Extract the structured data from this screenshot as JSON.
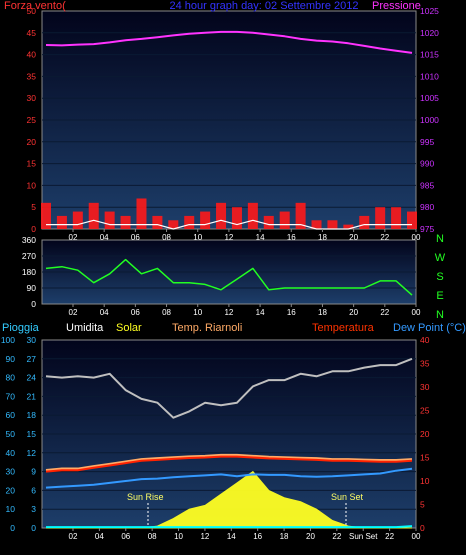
{
  "colors": {
    "background": "#000000",
    "plot_bg_top": "#02041b",
    "plot_bg_bottom": "#1d3e6a",
    "frame": "#8a8a8a",
    "grid": "#0a1a33",
    "wind_speed": "#ff1a1a",
    "wind_gust": "#ffffff",
    "pressure": "#ff33ff",
    "direction": "#22ff22",
    "rain": "#00ffff",
    "humidity": "#bfbfbf",
    "solar": "#ffff22",
    "apparent": "#ffaa66",
    "temperature": "#ff2200",
    "dewpoint": "#3399ff",
    "title_blue": "#3333ff",
    "left_axis": "#ff3333",
    "right_axis_pressure": "#cc33ff",
    "dir_axis": "#22ff22",
    "rain_axis": "#33bbff",
    "hum_axis": "#ffffff",
    "temp_axis": "#ff3333"
  },
  "header": {
    "wind_title": "Forza vento(",
    "center_title": "24 hour graph day: 02 Settembre 2012",
    "pressure_title": "Pressione"
  },
  "legend": {
    "rain": "Pioggia",
    "humidity": "Umidita",
    "solar": "Solar",
    "apparent": "Temp. Riarnoli",
    "temperature": "Temperatura",
    "dewpoint": "Dew Point (°C)"
  },
  "markers": {
    "sunrise": "Sun Rise",
    "sunset": "Sun Set",
    "sunset_tick": "Sun Set"
  },
  "chart_data": [
    {
      "type": "line",
      "title": "24 hour graph day: 02 Settembre 2012",
      "x": [
        1,
        2,
        3,
        4,
        5,
        6,
        7,
        8,
        9,
        10,
        11,
        12,
        13,
        14,
        15,
        16,
        17,
        18,
        19,
        20,
        21,
        22,
        23,
        24
      ],
      "x_tick_labels": [
        "02",
        "04",
        "06",
        "08",
        "10",
        "12",
        "14",
        "16",
        "18",
        "20",
        "22",
        "00"
      ],
      "y_left_label": "Forza vento(",
      "y_left_ticks": [
        0,
        5,
        10,
        15,
        20,
        25,
        30,
        35,
        40,
        45,
        50
      ],
      "y_left_range": [
        0,
        50
      ],
      "y_right_label": "Pressione",
      "y_right_ticks": [
        975,
        980,
        985,
        990,
        995,
        1000,
        1005,
        1010,
        1015,
        1020,
        1025
      ],
      "y_right_range": [
        975,
        1025
      ],
      "series": [
        {
          "axis": "right",
          "values": [
            1017.2,
            1017.1,
            1017.3,
            1017.4,
            1017.8,
            1018.3,
            1018.6,
            1019.0,
            1019.4,
            1019.8,
            1020.0,
            1020.2,
            1020.2,
            1020.0,
            1019.6,
            1019.2,
            1018.6,
            1018.2,
            1018.0,
            1017.6,
            1017.0,
            1016.4,
            1015.9,
            1015.4
          ]
        },
        {
          "axis": "left",
          "values": [
            6,
            3,
            4,
            6,
            4,
            3,
            7,
            3,
            2,
            3,
            4,
            6,
            5,
            6,
            3,
            4,
            6,
            2,
            2,
            1,
            3,
            5,
            5,
            4
          ]
        },
        {
          "axis": "left",
          "values": [
            1,
            1,
            1,
            2,
            1,
            1,
            1,
            1,
            0,
            1,
            1,
            2,
            1,
            2,
            1,
            1,
            1,
            0,
            0,
            0,
            1,
            1,
            1,
            1
          ]
        }
      ]
    },
    {
      "type": "line",
      "x": [
        1,
        2,
        3,
        4,
        5,
        6,
        7,
        8,
        9,
        10,
        11,
        12,
        13,
        14,
        15,
        16,
        17,
        18,
        19,
        20,
        21,
        22,
        23,
        24
      ],
      "x_tick_labels": [
        "02",
        "04",
        "06",
        "08",
        "10",
        "12",
        "14",
        "16",
        "18",
        "20",
        "22",
        "00"
      ],
      "y_ticks": [
        0,
        90,
        180,
        270,
        360
      ],
      "y_range": [
        0,
        360
      ],
      "right_labels": [
        "N",
        "W",
        "S",
        "E",
        "N"
      ],
      "series": [
        {
          "values": [
            200,
            210,
            190,
            120,
            170,
            250,
            170,
            200,
            120,
            120,
            110,
            80,
            140,
            200,
            80,
            90,
            90,
            90,
            90,
            90,
            90,
            130,
            130,
            50
          ]
        }
      ]
    },
    {
      "type": "line",
      "x": [
        1,
        2,
        3,
        4,
        5,
        6,
        7,
        8,
        9,
        10,
        11,
        12,
        13,
        14,
        15,
        16,
        17,
        18,
        19,
        20,
        21,
        22,
        23,
        24
      ],
      "x_tick_labels": [
        "02",
        "04",
        "06",
        "08",
        "10",
        "12",
        "14",
        "16",
        "18",
        "20",
        "22",
        "Sun Set",
        "22",
        "00"
      ],
      "legend": [
        "Pioggia",
        "Umidita",
        "Solar",
        "Temp. Riarnoli",
        "Temperatura",
        "Dew Point (°C)"
      ],
      "y_rain_ticks": [
        0,
        10,
        20,
        30,
        40,
        50,
        60,
        70,
        80,
        90,
        100
      ],
      "y_rain_range": [
        0,
        100
      ],
      "y_hum_ticks": [
        0,
        3,
        6,
        9,
        12,
        15,
        18,
        21,
        24,
        27,
        30
      ],
      "y_hum_range": [
        0,
        30
      ],
      "y_temp_ticks": [
        0,
        5,
        10,
        15,
        20,
        25,
        30,
        35,
        40
      ],
      "y_temp_range": [
        0,
        40
      ],
      "series": [
        {
          "axis": "hum",
          "values": [
            24.2,
            24.0,
            24.2,
            24.0,
            24.6,
            22.0,
            20.6,
            20.0,
            17.6,
            18.6,
            20.0,
            19.6,
            20.0,
            22.6,
            23.6,
            23.6,
            24.6,
            24.2,
            25.0,
            25.0,
            25.6,
            26.0,
            26.0,
            27.0
          ]
        },
        {
          "axis": "temp",
          "values": [
            12.3,
            12.6,
            12.6,
            13.1,
            13.6,
            14.1,
            14.6,
            14.8,
            15.0,
            15.2,
            15.3,
            15.5,
            15.5,
            15.3,
            15.1,
            15.0,
            14.9,
            14.8,
            14.6,
            14.6,
            14.5,
            14.4,
            14.4,
            14.6
          ]
        },
        {
          "axis": "temp",
          "values": [
            12.0,
            12.3,
            12.3,
            12.8,
            13.3,
            13.8,
            14.3,
            14.5,
            14.7,
            14.9,
            15.0,
            15.2,
            15.2,
            15.0,
            14.8,
            14.7,
            14.6,
            14.5,
            14.3,
            14.3,
            14.2,
            14.1,
            14.1,
            14.3
          ]
        },
        {
          "axis": "temp",
          "values": [
            8.6,
            8.8,
            9.0,
            9.2,
            9.6,
            10.0,
            10.4,
            10.5,
            10.8,
            11.0,
            11.2,
            11.4,
            11.0,
            11.4,
            11.3,
            11.3,
            11.0,
            10.9,
            11.0,
            11.2,
            11.4,
            11.6,
            12.2,
            12.6
          ]
        },
        {
          "axis": "rain",
          "values": [
            0.5,
            0.5,
            0.5,
            0.5,
            0.5,
            0.5,
            0.5,
            0.5,
            0.5,
            0.5,
            0.5,
            0.5,
            0.5,
            0.5,
            0.5,
            0.5,
            0.5,
            0.5,
            0.5,
            0.5,
            0.5,
            0.5,
            0.5,
            1.0
          ]
        },
        {
          "axis": "rain",
          "values": [
            0,
            0,
            0,
            0,
            0,
            0,
            0,
            1,
            5,
            10,
            12,
            18,
            24,
            30,
            20,
            16,
            14,
            10,
            4,
            1,
            0,
            0,
            0,
            0
          ]
        }
      ]
    }
  ]
}
